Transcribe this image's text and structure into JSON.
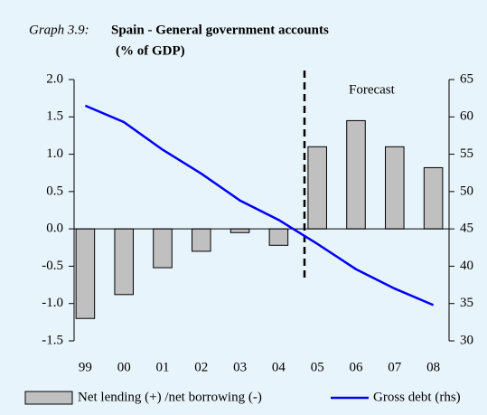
{
  "chart_data": {
    "type": "bar-line",
    "label": "Graph 3.9:",
    "title": "Spain - General government accounts",
    "subtitle": "(% of GDP)",
    "annotation": "Forecast",
    "categories": [
      "99",
      "00",
      "01",
      "02",
      "03",
      "04",
      "05",
      "06",
      "07",
      "08"
    ],
    "series": [
      {
        "name": "Net lending (+) /net borrowing (-)",
        "color": "#c0c0c0",
        "kind": "bar",
        "axis": "y",
        "values": [
          -1.2,
          -0.88,
          -0.52,
          -0.3,
          -0.05,
          -0.22,
          1.1,
          1.45,
          1.1,
          0.82
        ]
      },
      {
        "name": "Gross debt (rhs)",
        "color": "#0000ff",
        "kind": "line",
        "axis": "y2",
        "values": [
          61.5,
          59.3,
          55.6,
          52.4,
          48.8,
          46.2,
          43.0,
          39.6,
          37.0,
          34.8
        ]
      }
    ],
    "ylim": [
      -1.5,
      2.0
    ],
    "yticks": [
      {
        "value": -1.5,
        "label": "-1.5"
      },
      {
        "value": -1.0,
        "label": "-1.0"
      },
      {
        "value": -0.5,
        "label": "-0.5"
      },
      {
        "value": 0,
        "label": "0.0"
      },
      {
        "value": 0.5,
        "label": "0.5"
      },
      {
        "value": 1.0,
        "label": "1.0"
      },
      {
        "value": 1.5,
        "label": "1.5"
      },
      {
        "value": 2.0,
        "label": "2.0"
      }
    ],
    "y2lim": [
      30,
      65
    ],
    "y2ticks": [
      30,
      35,
      40,
      45,
      50,
      55,
      60,
      65
    ]
  }
}
